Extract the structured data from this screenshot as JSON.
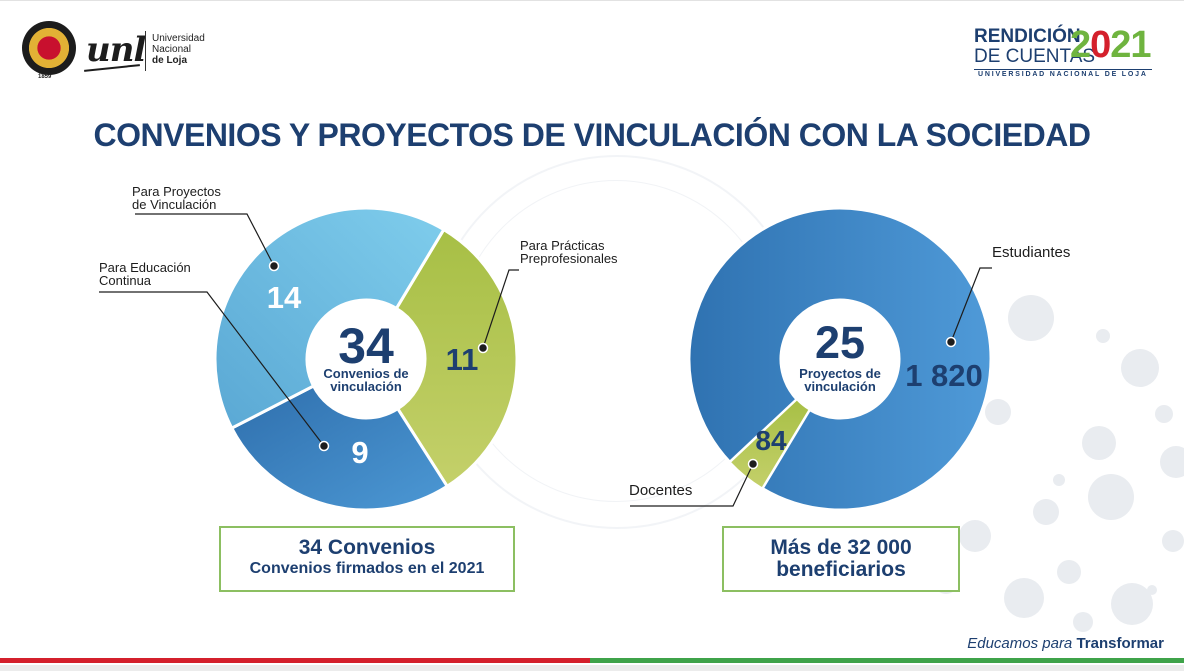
{
  "header": {
    "seal_year": "1859",
    "unl_logo_text": "unl",
    "university_lines": [
      "Universidad",
      "Nacional",
      "de Loja"
    ],
    "rendicion_line1": "RENDICIÓN",
    "rendicion_line2": "DE CUENTAS",
    "rendicion_year_a": "2",
    "rendicion_year_b": "0",
    "rendicion_year_c": "21",
    "rendicion_sub": "UNIVERSIDAD NACIONAL DE LOJA"
  },
  "title": "CONVENIOS Y PROYECTOS DE VINCULACIÓN CON LA SOCIEDAD",
  "chart_data": [
    {
      "type": "pie",
      "center_value": "34",
      "center_label_lines": [
        "Convenios de",
        "vinculación"
      ],
      "slices": [
        {
          "label_lines": [
            "Para Proyectos",
            "de Vinculación"
          ],
          "value": 14,
          "color": "#6cbfe4"
        },
        {
          "label_lines": [
            "Para Prácticas",
            "Preprofesionales"
          ],
          "value": 11,
          "color": "#aec24d"
        },
        {
          "label_lines": [
            "Para Educación",
            "Continua"
          ],
          "value": 9,
          "color": "#3f86c6"
        }
      ]
    },
    {
      "type": "pie",
      "center_value": "25",
      "center_label_lines": [
        "Proyectos de",
        "vinculación"
      ],
      "slices": [
        {
          "label_lines": [
            "Estudiantes"
          ],
          "value": 1820,
          "display": "1 820",
          "color": "#3f86c6"
        },
        {
          "label_lines": [
            "Docentes"
          ],
          "value": 84,
          "display": "84",
          "color": "#aec24d"
        }
      ]
    }
  ],
  "summary_left": {
    "line1": "34 Convenios",
    "line2": "Convenios firmados en el 2021"
  },
  "summary_right": {
    "line1": "Más de 32 000",
    "line2": "beneficiarios"
  },
  "footer": {
    "slogan_prefix": "Educamos para ",
    "slogan_bold": "Transformar"
  },
  "colors": {
    "navy": "#1d3f70",
    "green_border": "#8cbf61",
    "red": "#d4202c",
    "green": "#3fa34a"
  }
}
